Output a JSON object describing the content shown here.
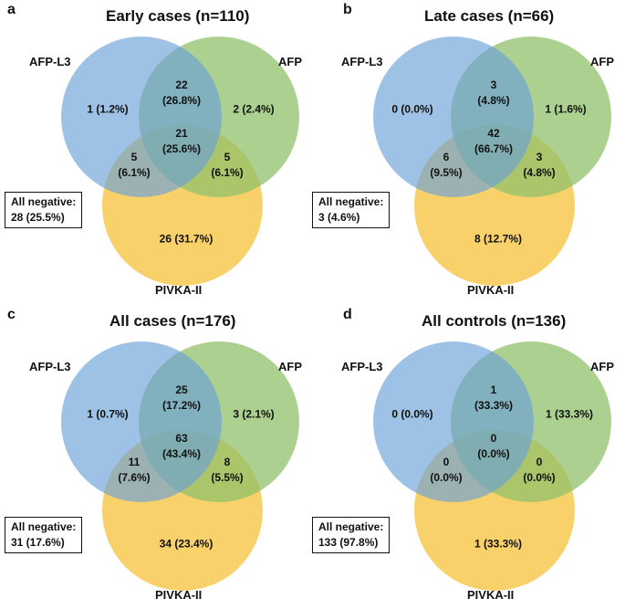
{
  "colors": {
    "afp_l3": "#6a9fd8",
    "afp": "#8fc06a",
    "pivka": "#f7c23a"
  },
  "panels": [
    {
      "letter": "a",
      "title": "Early cases (n=110)",
      "labels": {
        "afp_l3": "AFP-L3",
        "afp": "AFP",
        "pivka": "PIVKA-II"
      },
      "regions": {
        "l3_only": "1 (1.2%)",
        "afp_only": "2 (2.4%)",
        "l3_afp": [
          "22",
          "(26.8%)"
        ],
        "all3": [
          "21",
          "(25.6%)"
        ],
        "l3_pivka": [
          "5",
          "(6.1%)"
        ],
        "afp_pivka": [
          "5",
          "(6.1%)"
        ],
        "pivka_only": "26 (31.7%)"
      },
      "negative": [
        "All negative:",
        "28 (25.5%)"
      ]
    },
    {
      "letter": "b",
      "title": "Late cases (n=66)",
      "labels": {
        "afp_l3": "AFP-L3",
        "afp": "AFP",
        "pivka": "PIVKA-II"
      },
      "regions": {
        "l3_only": "0 (0.0%)",
        "afp_only": "1 (1.6%)",
        "l3_afp": [
          "3",
          "(4.8%)"
        ],
        "all3": [
          "42",
          "(66.7%)"
        ],
        "l3_pivka": [
          "6",
          "(9.5%)"
        ],
        "afp_pivka": [
          "3",
          "(4.8%)"
        ],
        "pivka_only": "8 (12.7%)"
      },
      "negative": [
        "All negative:",
        "3 (4.6%)"
      ]
    },
    {
      "letter": "c",
      "title": "All cases (n=176)",
      "labels": {
        "afp_l3": "AFP-L3",
        "afp": "AFP",
        "pivka": "PIVKA-II"
      },
      "regions": {
        "l3_only": "1 (0.7%)",
        "afp_only": "3 (2.1%)",
        "l3_afp": [
          "25",
          "(17.2%)"
        ],
        "all3": [
          "63",
          "(43.4%)"
        ],
        "l3_pivka": [
          "11",
          "(7.6%)"
        ],
        "afp_pivka": [
          "8",
          "(5.5%)"
        ],
        "pivka_only": "34 (23.4%)"
      },
      "negative": [
        "All negative:",
        "31 (17.6%)"
      ]
    },
    {
      "letter": "d",
      "title": "All controls (n=136)",
      "labels": {
        "afp_l3": "AFP-L3",
        "afp": "AFP",
        "pivka": "PIVKA-II"
      },
      "regions": {
        "l3_only": "0 (0.0%)",
        "afp_only": "1 (33.3%)",
        "l3_afp": [
          "1",
          "(33.3%)"
        ],
        "all3": [
          "0",
          "(0.0%)"
        ],
        "l3_pivka": [
          "0",
          "(0.0%)"
        ],
        "afp_pivka": [
          "0",
          "(0.0%)"
        ],
        "pivka_only": "1 (33.3%)"
      },
      "negative": [
        "All negative:",
        "133 (97.8%)"
      ]
    }
  ]
}
